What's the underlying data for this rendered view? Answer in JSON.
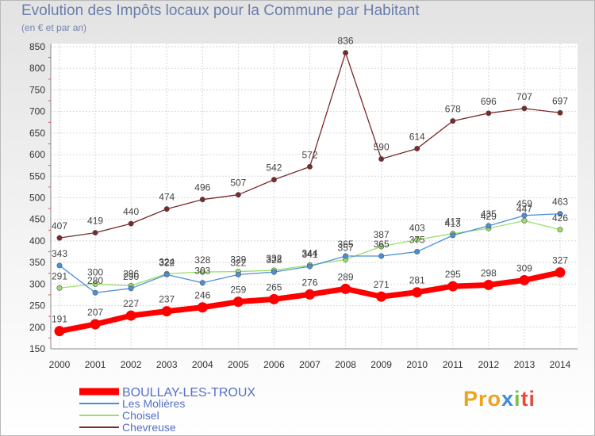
{
  "title": "Evolution des Impôts locaux pour la Commune par Habitant",
  "subtitle": "(en € et par an)",
  "logo": {
    "p1": "Pro",
    "p2": "x",
    "p3": "i",
    "p4": "ti"
  },
  "chart_data": {
    "type": "line",
    "title": "Evolution des Impôts locaux pour la Commune par Habitant",
    "ylabel": "(en € et par an)",
    "xlabel": "",
    "ylim": [
      150,
      850
    ],
    "yticks": [
      150,
      200,
      250,
      300,
      350,
      400,
      450,
      500,
      550,
      600,
      650,
      700,
      750,
      800,
      850
    ],
    "categories": [
      "2000",
      "2001",
      "2002",
      "2003",
      "2004",
      "2005",
      "2006",
      "2007",
      "2008",
      "2009",
      "2010",
      "2011",
      "2012",
      "2013",
      "2014"
    ],
    "grid": true,
    "legend_position": "bottom-left",
    "series": [
      {
        "name": "BOULLAY-LES-TROUX",
        "color": "#ff0000",
        "emphasis": true,
        "values": [
          191,
          207,
          227,
          237,
          246,
          259,
          265,
          276,
          289,
          271,
          281,
          295,
          298,
          309,
          327
        ]
      },
      {
        "name": "Les Molières",
        "color": "#4a90d9",
        "values": [
          343,
          280,
          290,
          322,
          303,
          322,
          328,
          341,
          365,
          365,
          375,
          413,
          435,
          459,
          463
        ]
      },
      {
        "name": "Choisel",
        "color": "#99e06a",
        "values": [
          291,
          300,
          296,
          324,
          328,
          329,
          332,
          344,
          357,
          387,
          403,
          417,
          429,
          447,
          426
        ]
      },
      {
        "name": "Chevreuse",
        "color": "#7a2a2a",
        "values": [
          407,
          419,
          440,
          474,
          496,
          507,
          542,
          572,
          836,
          590,
          614,
          678,
          696,
          707,
          697
        ]
      }
    ]
  }
}
